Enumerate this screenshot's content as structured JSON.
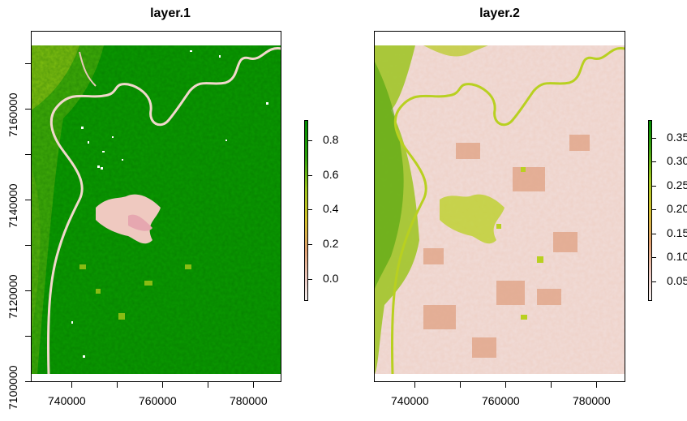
{
  "panels": [
    {
      "title": "layer.1",
      "x_ticks": [
        "740000",
        "760000",
        "780000"
      ],
      "y_ticks": [
        "7100000",
        "7120000",
        "7140000",
        "7160000"
      ],
      "legend": {
        "labels": [
          "0.0",
          "0.2",
          "0.4",
          "0.6",
          "0.8"
        ],
        "colors": [
          "#f2f2f2",
          "#e8b79c",
          "#d4c22a",
          "#8cc21a",
          "#1f9a0b",
          "#008c00"
        ]
      }
    },
    {
      "title": "layer.2",
      "x_ticks": [
        "740000",
        "760000",
        "780000"
      ],
      "y_ticks": [],
      "legend": {
        "labels": [
          "0.35",
          "0.30",
          "0.25",
          "0.20",
          "0.15",
          "0.10",
          "0.05"
        ],
        "colors": [
          "#f2f2f2",
          "#e8c0b0",
          "#e0a070",
          "#d2bf30",
          "#a4c820",
          "#3aa010",
          "#008c00"
        ]
      }
    }
  ],
  "colors": {
    "forest": "#0a9a00",
    "bright_green": "#2ab000",
    "river": "#f0d0c8",
    "light_pink": "#f0dcd8",
    "salmon": "#e0a88c",
    "yellow_green": "#b8d020"
  }
}
